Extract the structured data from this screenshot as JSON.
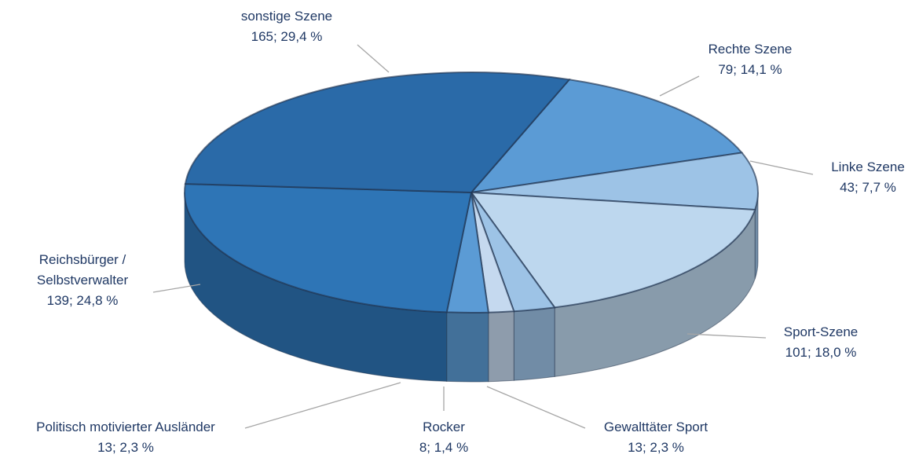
{
  "chart_data": {
    "type": "pie",
    "categories": [
      "Rechte Szene",
      "Linke Szene",
      "Sport-Szene",
      "Gewalttäter Sport",
      "Rocker",
      "Politisch motivierter Ausländer",
      "Reichsbürger / Selbstverwalter",
      "sonstige Szene"
    ],
    "values": [
      79,
      43,
      101,
      13,
      8,
      13,
      139,
      165
    ],
    "value_labels": [
      "79; 14,1 %",
      "43; 7,7 %",
      "101; 18,0 %",
      "13; 2,3 %",
      "8; 1,4 %",
      "13; 2,3 %",
      "139; 24,8 %",
      "165; 29,4 %"
    ],
    "colors": [
      "#5b9bd5",
      "#9dc3e6",
      "#bdd7ee",
      "#9dc3e6",
      "#c5d9ef",
      "#5b9bd5",
      "#2e75b6",
      "#2a6aa8"
    ]
  }
}
